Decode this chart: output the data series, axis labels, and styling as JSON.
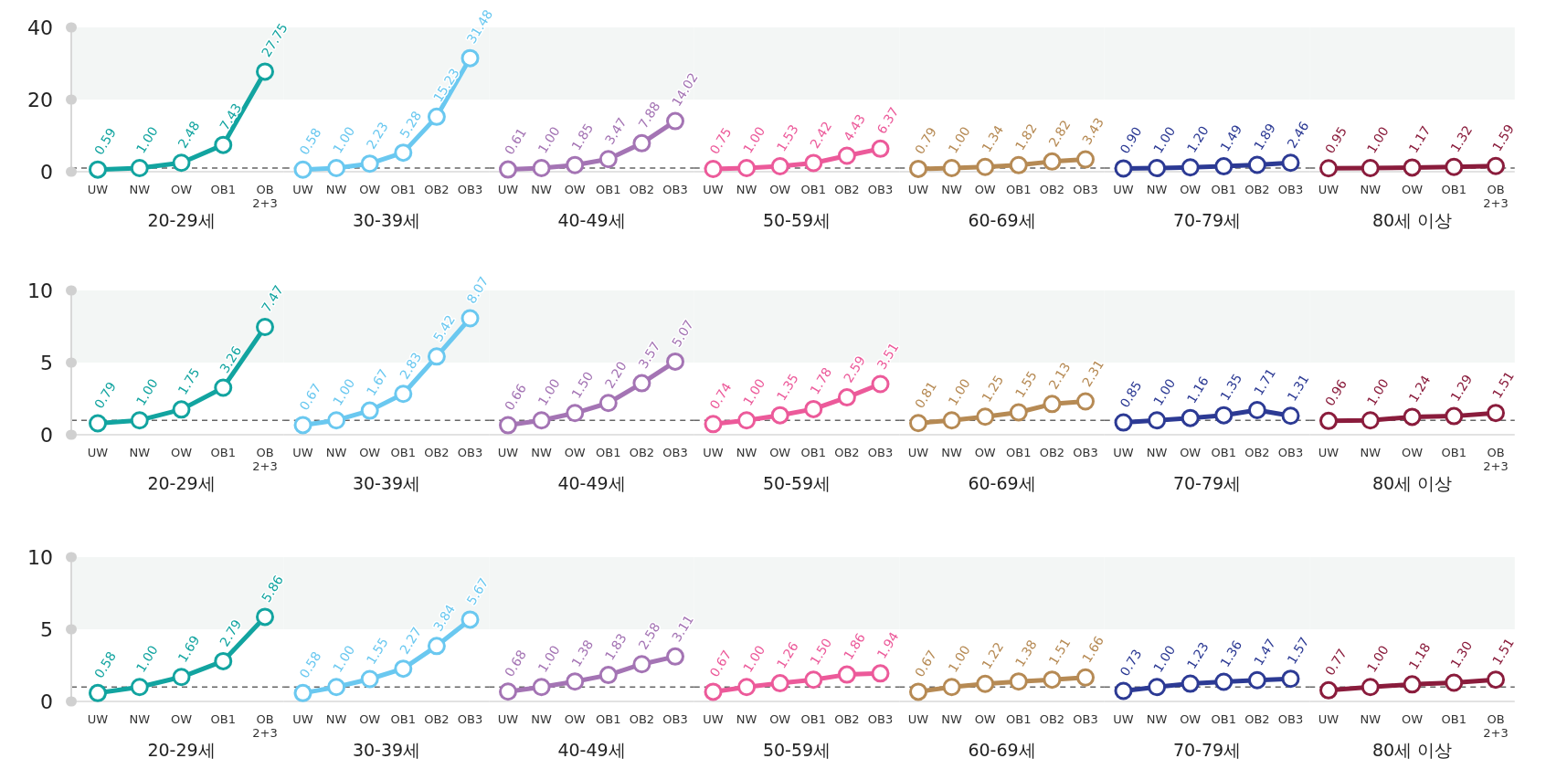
{
  "chart_data": [
    {
      "type": "line",
      "xlabel": "20-29세",
      "categories": [
        "UW",
        "NW",
        "OW",
        "OB1",
        "OB 2+3"
      ],
      "values": [
        0.59,
        1.0,
        2.48,
        7.43,
        27.75
      ],
      "value_labels": [
        "0.59",
        "1.00",
        "2.48",
        "7.43",
        "27.75"
      ],
      "color": "#12a4a0",
      "ylim": [
        0,
        40
      ],
      "yticks": [
        0,
        20,
        40
      ],
      "bands": [
        {
          "axis": "y",
          "from": 20,
          "to": 40,
          "color": "#f3f6f5"
        }
      ],
      "ref_lines": [
        {
          "axis": "y",
          "value": 1,
          "color": "#666666",
          "line_style": "dashed"
        }
      ],
      "marker": "circle"
    },
    {
      "type": "line",
      "xlabel": "30-39세",
      "categories": [
        "UW",
        "NW",
        "OW",
        "OB1",
        "OB2",
        "OB3"
      ],
      "values": [
        0.58,
        1.0,
        2.23,
        5.28,
        15.23,
        31.48
      ],
      "value_labels": [
        "0.58",
        "1.00",
        "2.23",
        "5.28",
        "15.23",
        "31.48"
      ],
      "color": "#6ac8f0",
      "ylim": [
        0,
        40
      ],
      "tick_labels": "x",
      "bands": [
        {
          "axis": "y",
          "from": 20,
          "to": 40,
          "color": "#f3f6f5"
        }
      ],
      "ref_lines": [
        {
          "axis": "y",
          "value": 1,
          "color": "#666666",
          "line_style": "dashed"
        }
      ],
      "marker": "circle"
    },
    {
      "type": "line",
      "xlabel": "40-49세",
      "categories": [
        "UW",
        "NW",
        "OW",
        "OB1",
        "OB2",
        "OB3"
      ],
      "values": [
        0.61,
        1.0,
        1.85,
        3.47,
        7.88,
        14.02
      ],
      "value_labels": [
        "0.61",
        "1.00",
        "1.85",
        "3.47",
        "7.88",
        "14.02"
      ],
      "color": "#a474b4",
      "ylim": [
        0,
        40
      ],
      "tick_labels": "x",
      "bands": [
        {
          "axis": "y",
          "from": 20,
          "to": 40,
          "color": "#f3f6f5"
        }
      ],
      "ref_lines": [
        {
          "axis": "y",
          "value": 1,
          "color": "#666666",
          "line_style": "dashed"
        }
      ],
      "marker": "circle"
    },
    {
      "type": "line",
      "xlabel": "50-59세",
      "categories": [
        "UW",
        "NW",
        "OW",
        "OB1",
        "OB2",
        "OB3"
      ],
      "values": [
        0.75,
        1.0,
        1.53,
        2.42,
        4.43,
        6.37
      ],
      "value_labels": [
        "0.75",
        "1.00",
        "1.53",
        "2.42",
        "4.43",
        "6.37"
      ],
      "color": "#ec5a9a",
      "ylim": [
        0,
        40
      ],
      "tick_labels": "x",
      "bands": [
        {
          "axis": "y",
          "from": 20,
          "to": 40,
          "color": "#f3f6f5"
        }
      ],
      "ref_lines": [
        {
          "axis": "y",
          "value": 1,
          "color": "#666666",
          "line_style": "dashed"
        }
      ],
      "marker": "circle"
    },
    {
      "type": "line",
      "xlabel": "60-69세",
      "categories": [
        "UW",
        "NW",
        "OW",
        "OB1",
        "OB2",
        "OB3"
      ],
      "values": [
        0.79,
        1.0,
        1.34,
        1.82,
        2.82,
        3.43
      ],
      "value_labels": [
        "0.79",
        "1.00",
        "1.34",
        "1.82",
        "2.82",
        "3.43"
      ],
      "color": "#b68a54",
      "ylim": [
        0,
        40
      ],
      "tick_labels": "x",
      "bands": [
        {
          "axis": "y",
          "from": 20,
          "to": 40,
          "color": "#f3f6f5"
        }
      ],
      "ref_lines": [
        {
          "axis": "y",
          "value": 1,
          "color": "#666666",
          "line_style": "dashed"
        }
      ],
      "marker": "circle"
    },
    {
      "type": "line",
      "xlabel": "70-79세",
      "categories": [
        "UW",
        "NW",
        "OW",
        "OB1",
        "OB2",
        "OB3"
      ],
      "values": [
        0.9,
        1.0,
        1.2,
        1.49,
        1.89,
        2.46
      ],
      "value_labels": [
        "0.90",
        "1.00",
        "1.20",
        "1.49",
        "1.89",
        "2.46"
      ],
      "color": "#2c3a94",
      "ylim": [
        0,
        40
      ],
      "tick_labels": "x",
      "bands": [
        {
          "axis": "y",
          "from": 20,
          "to": 40,
          "color": "#f3f6f5"
        }
      ],
      "ref_lines": [
        {
          "axis": "y",
          "value": 1,
          "color": "#666666",
          "line_style": "dashed"
        }
      ],
      "marker": "circle"
    },
    {
      "type": "line",
      "xlabel": "80세 이상",
      "categories": [
        "UW",
        "NW",
        "OW",
        "OB1",
        "OB 2+3"
      ],
      "values": [
        0.95,
        1.0,
        1.17,
        1.32,
        1.59
      ],
      "value_labels": [
        "0.95",
        "1.00",
        "1.17",
        "1.32",
        "1.59"
      ],
      "color": "#8a1c3c",
      "ylim": [
        0,
        40
      ],
      "tick_labels": "x",
      "bands": [
        {
          "axis": "y",
          "from": 20,
          "to": 40,
          "color": "#f3f6f5"
        }
      ],
      "ref_lines": [
        {
          "axis": "y",
          "value": 1,
          "color": "#666666",
          "line_style": "dashed"
        }
      ],
      "marker": "circle"
    },
    {
      "type": "line",
      "xlabel": "20-29세",
      "categories": [
        "UW",
        "NW",
        "OW",
        "OB1",
        "OB 2+3"
      ],
      "values": [
        0.79,
        1.0,
        1.75,
        3.26,
        7.47
      ],
      "value_labels": [
        "0.79",
        "1.00",
        "1.75",
        "3.26",
        "7.47"
      ],
      "color": "#12a4a0",
      "ylim": [
        0,
        10
      ],
      "yticks": [
        0,
        5,
        10
      ],
      "bands": [
        {
          "axis": "y",
          "from": 5,
          "to": 10,
          "color": "#f3f6f5"
        }
      ],
      "ref_lines": [
        {
          "axis": "y",
          "value": 1,
          "color": "#666666",
          "line_style": "dashed"
        }
      ],
      "marker": "circle"
    },
    {
      "type": "line",
      "xlabel": "30-39세",
      "categories": [
        "UW",
        "NW",
        "OW",
        "OB1",
        "OB2",
        "OB3"
      ],
      "values": [
        0.67,
        1.0,
        1.67,
        2.83,
        5.42,
        8.07
      ],
      "value_labels": [
        "0.67",
        "1.00",
        "1.67",
        "2.83",
        "5.42",
        "8.07"
      ],
      "color": "#6ac8f0",
      "ylim": [
        0,
        10
      ],
      "tick_labels": "x",
      "bands": [
        {
          "axis": "y",
          "from": 5,
          "to": 10,
          "color": "#f3f6f5"
        }
      ],
      "ref_lines": [
        {
          "axis": "y",
          "value": 1,
          "color": "#666666",
          "line_style": "dashed"
        }
      ],
      "marker": "circle"
    },
    {
      "type": "line",
      "xlabel": "40-49세",
      "categories": [
        "UW",
        "NW",
        "OW",
        "OB1",
        "OB2",
        "OB3"
      ],
      "values": [
        0.66,
        1.0,
        1.5,
        2.2,
        3.57,
        5.07
      ],
      "value_labels": [
        "0.66",
        "1.00",
        "1.50",
        "2.20",
        "3.57",
        "5.07"
      ],
      "color": "#a474b4",
      "ylim": [
        0,
        10
      ],
      "tick_labels": "x",
      "bands": [
        {
          "axis": "y",
          "from": 5,
          "to": 10,
          "color": "#f3f6f5"
        }
      ],
      "ref_lines": [
        {
          "axis": "y",
          "value": 1,
          "color": "#666666",
          "line_style": "dashed"
        }
      ],
      "marker": "circle"
    },
    {
      "type": "line",
      "xlabel": "50-59세",
      "categories": [
        "UW",
        "NW",
        "OW",
        "OB1",
        "OB2",
        "OB3"
      ],
      "values": [
        0.74,
        1.0,
        1.35,
        1.78,
        2.59,
        3.51
      ],
      "value_labels": [
        "0.74",
        "1.00",
        "1.35",
        "1.78",
        "2.59",
        "3.51"
      ],
      "color": "#ec5a9a",
      "ylim": [
        0,
        10
      ],
      "tick_labels": "x",
      "bands": [
        {
          "axis": "y",
          "from": 5,
          "to": 10,
          "color": "#f3f6f5"
        }
      ],
      "ref_lines": [
        {
          "axis": "y",
          "value": 1,
          "color": "#666666",
          "line_style": "dashed"
        }
      ],
      "marker": "circle"
    },
    {
      "type": "line",
      "xlabel": "60-69세",
      "categories": [
        "UW",
        "NW",
        "OW",
        "OB1",
        "OB2",
        "OB3"
      ],
      "values": [
        0.81,
        1.0,
        1.25,
        1.55,
        2.13,
        2.31
      ],
      "value_labels": [
        "0.81",
        "1.00",
        "1.25",
        "1.55",
        "2.13",
        "2.31"
      ],
      "color": "#b68a54",
      "ylim": [
        0,
        10
      ],
      "tick_labels": "x",
      "bands": [
        {
          "axis": "y",
          "from": 5,
          "to": 10,
          "color": "#f3f6f5"
        }
      ],
      "ref_lines": [
        {
          "axis": "y",
          "value": 1,
          "color": "#666666",
          "line_style": "dashed"
        }
      ],
      "marker": "circle"
    },
    {
      "type": "line",
      "xlabel": "70-79세",
      "categories": [
        "UW",
        "NW",
        "OW",
        "OB1",
        "OB2",
        "OB3"
      ],
      "values": [
        0.85,
        1.0,
        1.16,
        1.35,
        1.71,
        1.31
      ],
      "value_labels": [
        "0.85",
        "1.00",
        "1.16",
        "1.35",
        "1.71",
        "1.31"
      ],
      "color": "#2c3a94",
      "ylim": [
        0,
        10
      ],
      "tick_labels": "x",
      "bands": [
        {
          "axis": "y",
          "from": 5,
          "to": 10,
          "color": "#f3f6f5"
        }
      ],
      "ref_lines": [
        {
          "axis": "y",
          "value": 1,
          "color": "#666666",
          "line_style": "dashed"
        }
      ],
      "marker": "circle"
    },
    {
      "type": "line",
      "xlabel": "80세 이상",
      "categories": [
        "UW",
        "NW",
        "OW",
        "OB1",
        "OB 2+3"
      ],
      "values": [
        0.96,
        1.0,
        1.24,
        1.29,
        1.51
      ],
      "value_labels": [
        "0.96",
        "1.00",
        "1.24",
        "1.29",
        "1.51"
      ],
      "color": "#8a1c3c",
      "ylim": [
        0,
        10
      ],
      "tick_labels": "x",
      "bands": [
        {
          "axis": "y",
          "from": 5,
          "to": 10,
          "color": "#f3f6f5"
        }
      ],
      "ref_lines": [
        {
          "axis": "y",
          "value": 1,
          "color": "#666666",
          "line_style": "dashed"
        }
      ],
      "marker": "circle"
    },
    {
      "type": "line",
      "xlabel": "20-29세",
      "categories": [
        "UW",
        "NW",
        "OW",
        "OB1",
        "OB 2+3"
      ],
      "values": [
        0.58,
        1.0,
        1.69,
        2.79,
        5.86
      ],
      "value_labels": [
        "0.58",
        "1.00",
        "1.69",
        "2.79",
        "5.86"
      ],
      "color": "#12a4a0",
      "ylim": [
        0,
        10
      ],
      "yticks": [
        0,
        5,
        10
      ],
      "bands": [
        {
          "axis": "y",
          "from": 5,
          "to": 10,
          "color": "#f3f6f5"
        }
      ],
      "ref_lines": [
        {
          "axis": "y",
          "value": 1,
          "color": "#666666",
          "line_style": "dashed"
        }
      ],
      "marker": "circle"
    },
    {
      "type": "line",
      "xlabel": "30-39세",
      "categories": [
        "UW",
        "NW",
        "OW",
        "OB1",
        "OB2",
        "OB3"
      ],
      "values": [
        0.58,
        1.0,
        1.55,
        2.27,
        3.84,
        5.67
      ],
      "value_labels": [
        "0.58",
        "1.00",
        "1.55",
        "2.27",
        "3.84",
        "5.67"
      ],
      "color": "#6ac8f0",
      "ylim": [
        0,
        10
      ],
      "tick_labels": "x",
      "bands": [
        {
          "axis": "y",
          "from": 5,
          "to": 10,
          "color": "#f3f6f5"
        }
      ],
      "ref_lines": [
        {
          "axis": "y",
          "value": 1,
          "color": "#666666",
          "line_style": "dashed"
        }
      ],
      "marker": "circle"
    },
    {
      "type": "line",
      "xlabel": "40-49세",
      "categories": [
        "UW",
        "NW",
        "OW",
        "OB1",
        "OB2",
        "OB3"
      ],
      "values": [
        0.68,
        1.0,
        1.38,
        1.83,
        2.58,
        3.11
      ],
      "value_labels": [
        "0.68",
        "1.00",
        "1.38",
        "1.83",
        "2.58",
        "3.11"
      ],
      "color": "#a474b4",
      "ylim": [
        0,
        10
      ],
      "tick_labels": "x",
      "bands": [
        {
          "axis": "y",
          "from": 5,
          "to": 10,
          "color": "#f3f6f5"
        }
      ],
      "ref_lines": [
        {
          "axis": "y",
          "value": 1,
          "color": "#666666",
          "line_style": "dashed"
        }
      ],
      "marker": "circle"
    },
    {
      "type": "line",
      "xlabel": "50-59세",
      "categories": [
        "UW",
        "NW",
        "OW",
        "OB1",
        "OB2",
        "OB3"
      ],
      "values": [
        0.67,
        1.0,
        1.26,
        1.5,
        1.86,
        1.94
      ],
      "value_labels": [
        "0.67",
        "1.00",
        "1.26",
        "1.50",
        "1.86",
        "1.94"
      ],
      "color": "#ec5a9a",
      "ylim": [
        0,
        10
      ],
      "tick_labels": "x",
      "bands": [
        {
          "axis": "y",
          "from": 5,
          "to": 10,
          "color": "#f3f6f5"
        }
      ],
      "ref_lines": [
        {
          "axis": "y",
          "value": 1,
          "color": "#666666",
          "line_style": "dashed"
        }
      ],
      "marker": "circle"
    },
    {
      "type": "line",
      "xlabel": "60-69세",
      "categories": [
        "UW",
        "NW",
        "OW",
        "OB1",
        "OB2",
        "OB3"
      ],
      "values": [
        0.67,
        1.0,
        1.22,
        1.38,
        1.51,
        1.66
      ],
      "value_labels": [
        "0.67",
        "1.00",
        "1.22",
        "1.38",
        "1.51",
        "1.66"
      ],
      "color": "#b68a54",
      "ylim": [
        0,
        10
      ],
      "tick_labels": "x",
      "bands": [
        {
          "axis": "y",
          "from": 5,
          "to": 10,
          "color": "#f3f6f5"
        }
      ],
      "ref_lines": [
        {
          "axis": "y",
          "value": 1,
          "color": "#666666",
          "line_style": "dashed"
        }
      ],
      "marker": "circle"
    },
    {
      "type": "line",
      "xlabel": "70-79세",
      "categories": [
        "UW",
        "NW",
        "OW",
        "OB1",
        "OB2",
        "OB3"
      ],
      "values": [
        0.73,
        1.0,
        1.23,
        1.36,
        1.47,
        1.57
      ],
      "value_labels": [
        "0.73",
        "1.00",
        "1.23",
        "1.36",
        "1.47",
        "1.57"
      ],
      "color": "#2c3a94",
      "ylim": [
        0,
        10
      ],
      "tick_labels": "x",
      "bands": [
        {
          "axis": "y",
          "from": 5,
          "to": 10,
          "color": "#f3f6f5"
        }
      ],
      "ref_lines": [
        {
          "axis": "y",
          "value": 1,
          "color": "#666666",
          "line_style": "dashed"
        }
      ],
      "marker": "circle"
    },
    {
      "type": "line",
      "xlabel": "80세 이상",
      "categories": [
        "UW",
        "NW",
        "OW",
        "OB1",
        "OB 2+3"
      ],
      "values": [
        0.77,
        1.0,
        1.18,
        1.3,
        1.51
      ],
      "value_labels": [
        "0.77",
        "1.00",
        "1.18",
        "1.30",
        "1.51"
      ],
      "color": "#8a1c3c",
      "ylim": [
        0,
        10
      ],
      "tick_labels": "x",
      "bands": [
        {
          "axis": "y",
          "from": 5,
          "to": 10,
          "color": "#f3f6f5"
        }
      ],
      "ref_lines": [
        {
          "axis": "y",
          "value": 1,
          "color": "#666666",
          "line_style": "dashed"
        }
      ],
      "marker": "circle"
    }
  ]
}
